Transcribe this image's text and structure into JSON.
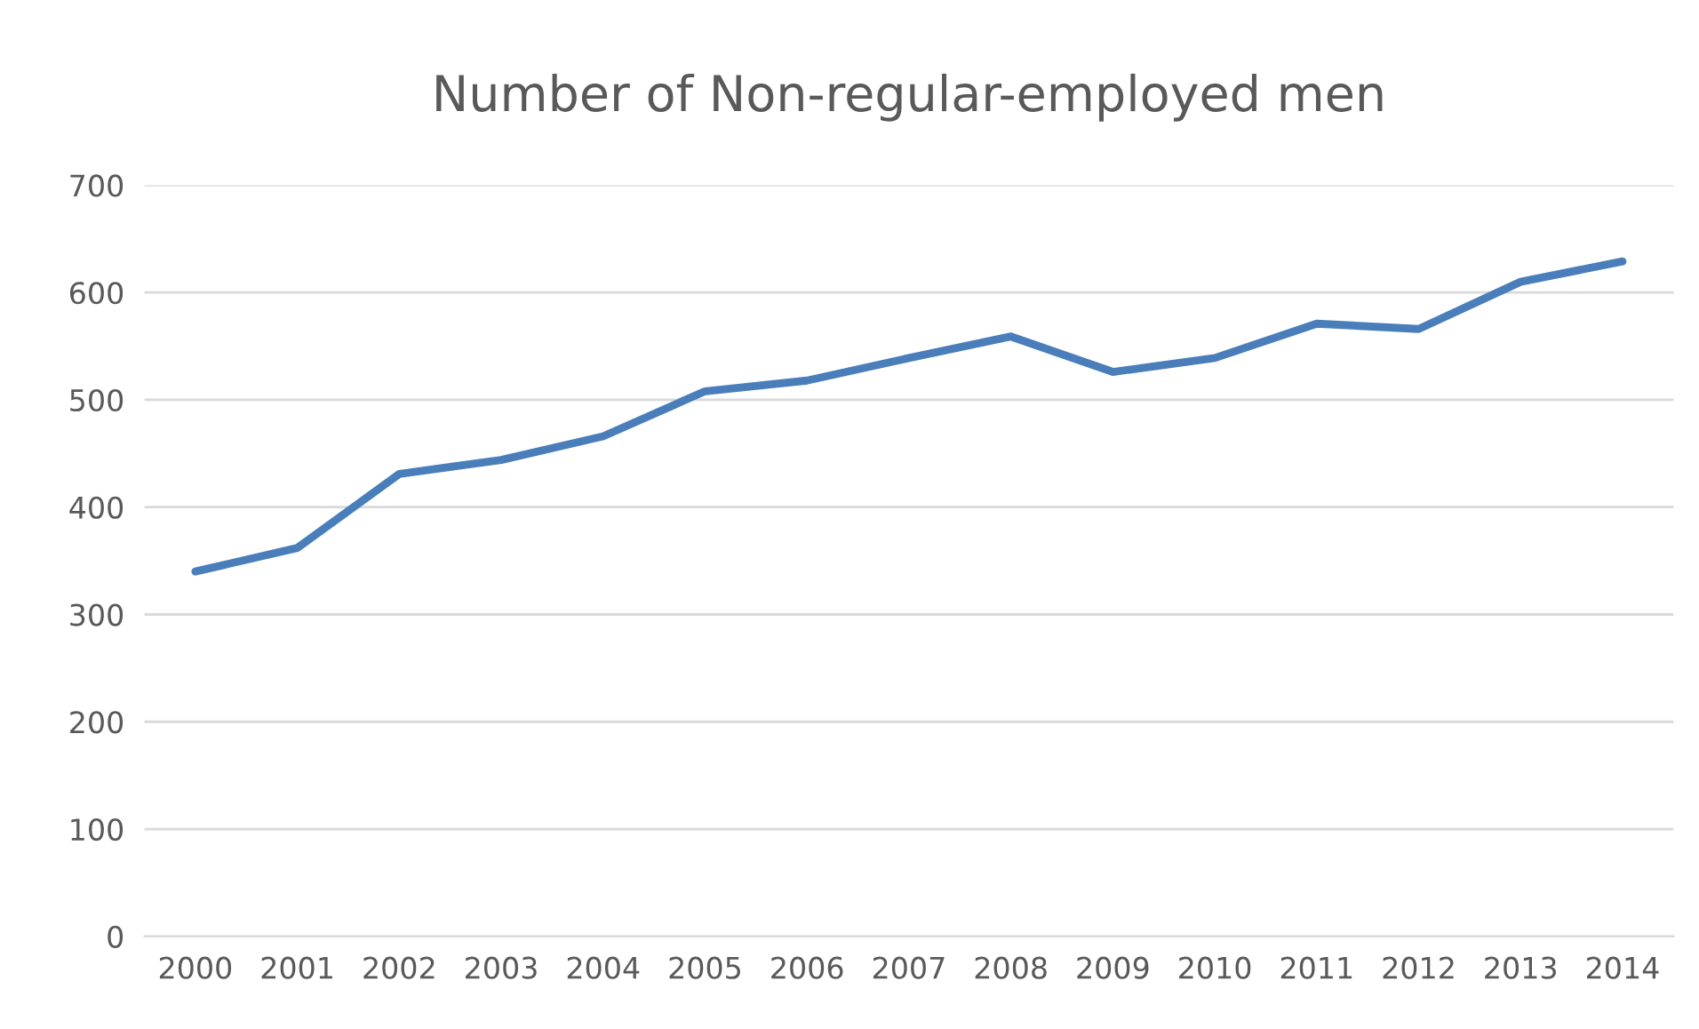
{
  "chart_data": {
    "type": "line",
    "title": "Number of Non-regular-employed men",
    "categories": [
      "2000",
      "2001",
      "2002",
      "2003",
      "2004",
      "2005",
      "2006",
      "2007",
      "2008",
      "2009",
      "2010",
      "2011",
      "2012",
      "2013",
      "2014"
    ],
    "series": [
      {
        "color": "#4a7ebb",
        "values": [
          340,
          362,
          431,
          444,
          466,
          508,
          518,
          539,
          559,
          526,
          539,
          571,
          566,
          610,
          629
        ]
      }
    ],
    "ylim": [
      0,
      700
    ],
    "yticks": [
      0,
      100,
      200,
      300,
      400,
      500,
      600,
      700
    ],
    "grid": "y",
    "marker": "none",
    "line_style": "solid"
  }
}
